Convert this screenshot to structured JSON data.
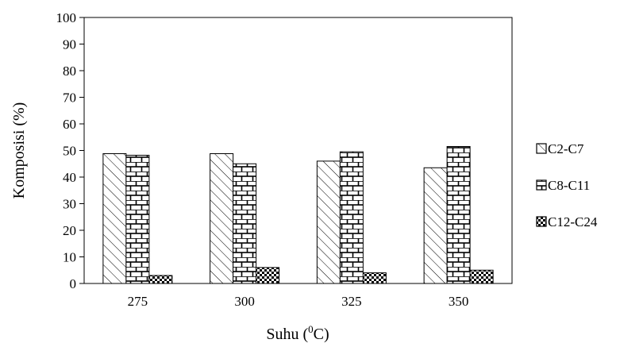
{
  "chart_data": {
    "type": "bar",
    "title": "",
    "xlabel_main": "Suhu (",
    "xlabel_sup": "0",
    "xlabel_tail": "C)",
    "ylabel": "Komposisi (%)",
    "ylim": [
      0,
      100
    ],
    "yticks": [
      "0",
      "10",
      "20",
      "30",
      "40",
      "50",
      "60",
      "70",
      "80",
      "90",
      "100"
    ],
    "categories": [
      "275",
      "300",
      "325",
      "350"
    ],
    "series": [
      {
        "name": "C2-C7",
        "pattern": "diagonal-hatch",
        "values": [
          48.8,
          48.8,
          46.0,
          43.5
        ]
      },
      {
        "name": "C8-C11",
        "pattern": "brick",
        "values": [
          48.2,
          45.0,
          49.5,
          51.5
        ]
      },
      {
        "name": "C12-C24",
        "pattern": "checker",
        "values": [
          3.0,
          6.0,
          4.0,
          5.0
        ]
      }
    ],
    "grid": false,
    "legend_position": "right"
  }
}
